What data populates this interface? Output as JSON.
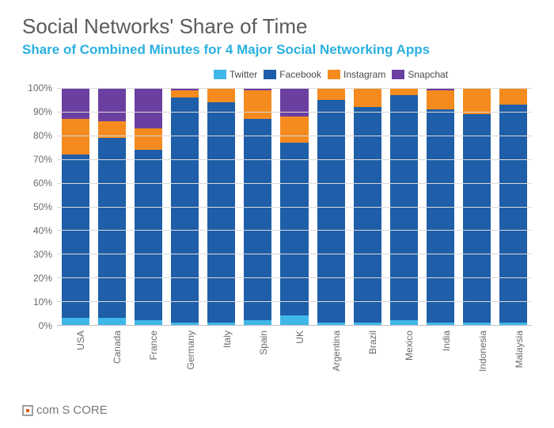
{
  "title": "Social Networks' Share of Time",
  "subtitle": "Share of Combined Minutes for 4 Major Social Networking Apps",
  "subtitle_color": "#2ab0e0",
  "chart": {
    "type": "stacked-bar",
    "ylim": [
      0,
      100
    ],
    "ytick_step": 10,
    "ytick_suffix": "%",
    "grid_color": "#d9d9d9",
    "axis_text_color": "#6a6a6a",
    "background_color": "#ffffff",
    "bar_width_ratio": 0.76,
    "series": [
      {
        "id": "twitter",
        "label": "Twitter",
        "color": "#3fb7e8"
      },
      {
        "id": "facebook",
        "label": "Facebook",
        "color": "#1f5ea8"
      },
      {
        "id": "instagram",
        "label": "Instagram",
        "color": "#f58b1f"
      },
      {
        "id": "snapchat",
        "label": "Snapchat",
        "color": "#6b3fa0"
      }
    ],
    "categories": [
      "USA",
      "Canada",
      "France",
      "Germany",
      "Italy",
      "Spain",
      "UK",
      "Argentina",
      "Brazil",
      "Mexico",
      "India",
      "Indonesia",
      "Malaysia"
    ],
    "data": {
      "USA": {
        "twitter": 3,
        "facebook": 69,
        "instagram": 15,
        "snapchat": 13
      },
      "Canada": {
        "twitter": 3,
        "facebook": 76,
        "instagram": 7,
        "snapchat": 14
      },
      "France": {
        "twitter": 2,
        "facebook": 72,
        "instagram": 9,
        "snapchat": 17
      },
      "Germany": {
        "twitter": 1,
        "facebook": 95,
        "instagram": 3,
        "snapchat": 1
      },
      "Italy": {
        "twitter": 1,
        "facebook": 93,
        "instagram": 6,
        "snapchat": 0
      },
      "Spain": {
        "twitter": 2,
        "facebook": 85,
        "instagram": 12,
        "snapchat": 1
      },
      "UK": {
        "twitter": 4,
        "facebook": 73,
        "instagram": 11,
        "snapchat": 12
      },
      "Argentina": {
        "twitter": 1,
        "facebook": 94,
        "instagram": 5,
        "snapchat": 0
      },
      "Brazil": {
        "twitter": 1,
        "facebook": 91,
        "instagram": 8,
        "snapchat": 0
      },
      "Mexico": {
        "twitter": 2,
        "facebook": 95,
        "instagram": 3,
        "snapchat": 0
      },
      "India": {
        "twitter": 1,
        "facebook": 90,
        "instagram": 8,
        "snapchat": 1
      },
      "Indonesia": {
        "twitter": 1,
        "facebook": 88,
        "instagram": 11,
        "snapchat": 0
      },
      "Malaysia": {
        "twitter": 1,
        "facebook": 92,
        "instagram": 7,
        "snapchat": 0
      }
    }
  },
  "footer": {
    "brand_prefix": "com",
    "brand_cap": "S",
    "brand_suffix": "CORE"
  }
}
